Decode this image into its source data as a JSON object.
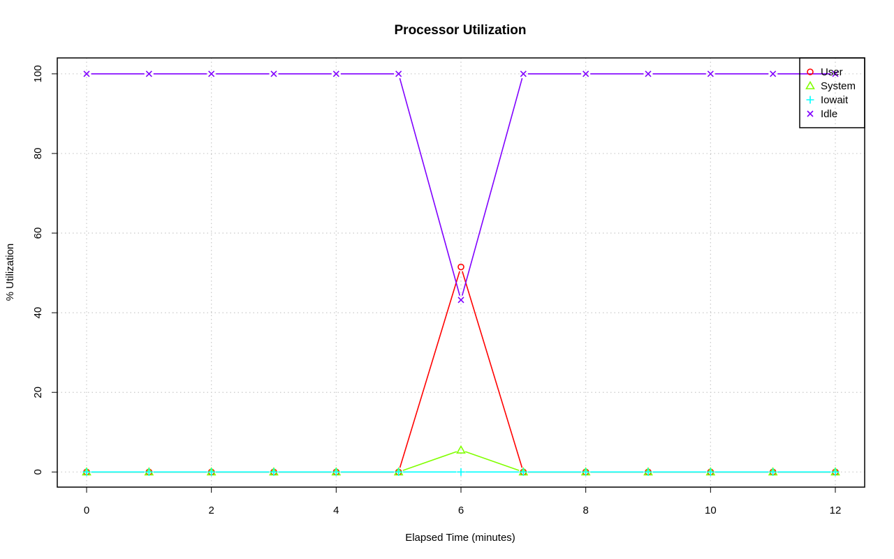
{
  "chart_data": {
    "type": "line",
    "title": "Processor Utilization",
    "xlabel": "Elapsed Time (minutes)",
    "ylabel": "% Utilization",
    "x": [
      0,
      1,
      2,
      3,
      4,
      5,
      6,
      7,
      8,
      9,
      10,
      11,
      12
    ],
    "x_ticks": [
      0,
      2,
      4,
      6,
      8,
      10,
      12
    ],
    "y_ticks": [
      0,
      20,
      40,
      60,
      80,
      100
    ],
    "xlim": [
      -0.47,
      12.47
    ],
    "ylim": [
      -3.8,
      104
    ],
    "grid": true,
    "legend_position": "top-right",
    "series": [
      {
        "name": "User",
        "color": "#ff0000",
        "marker": "circle",
        "values": [
          0,
          0,
          0,
          0,
          0,
          0,
          51.5,
          0,
          0,
          0,
          0,
          0,
          0
        ]
      },
      {
        "name": "System",
        "color": "#80ff00",
        "marker": "triangle",
        "values": [
          0,
          0,
          0,
          0,
          0,
          0,
          5.5,
          0,
          0,
          0,
          0,
          0,
          0
        ]
      },
      {
        "name": "Iowait",
        "color": "#00ffff",
        "marker": "plus",
        "values": [
          0,
          0,
          0,
          0,
          0,
          0,
          0,
          0,
          0,
          0,
          0,
          0,
          0
        ]
      },
      {
        "name": "Idle",
        "color": "#8000ff",
        "marker": "cross",
        "values": [
          100,
          100,
          100,
          100,
          100,
          100,
          43.2,
          100,
          100,
          100,
          100,
          100,
          100
        ]
      }
    ]
  }
}
